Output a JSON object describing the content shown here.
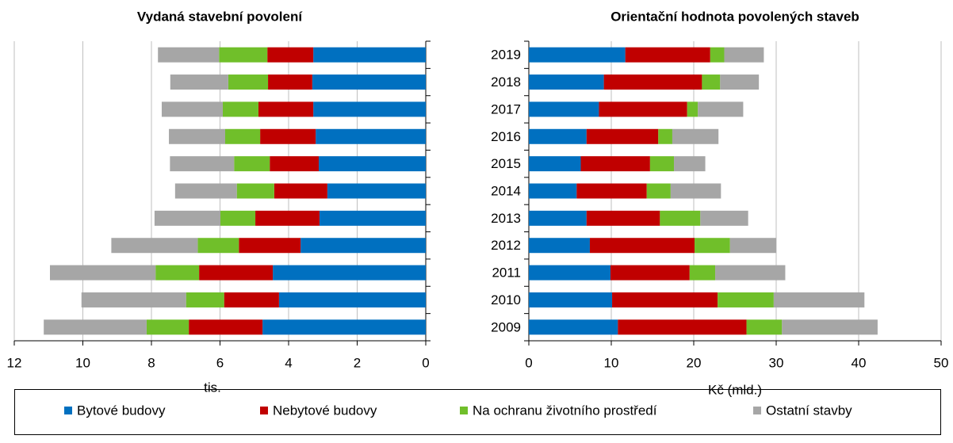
{
  "chart_data": [
    {
      "type": "stacked-barh",
      "title": "Vydaná stavební povolení",
      "xlabel": "tis.",
      "xlim": [
        12,
        0
      ],
      "xticks": [
        12,
        10,
        8,
        6,
        4,
        2,
        0
      ],
      "grid": true,
      "series": [
        {
          "name": "Bytové budovy",
          "color": "#0070c0",
          "values": [
            4.76,
            4.28,
            4.46,
            3.65,
            3.1,
            2.87,
            3.12,
            3.21,
            3.28,
            3.31,
            3.28
          ]
        },
        {
          "name": "Nebytové budovy",
          "color": "#c00000",
          "values": [
            2.15,
            1.6,
            2.15,
            1.8,
            1.87,
            1.55,
            1.43,
            1.62,
            1.6,
            1.29,
            1.34
          ]
        },
        {
          "name": "Na ochranu životního prostředí",
          "color": "#70bf2a",
          "values": [
            1.23,
            1.11,
            1.27,
            1.2,
            1.02,
            1.09,
            1.04,
            1.02,
            1.04,
            1.16,
            1.41
          ]
        },
        {
          "name": "Ostatní stavby",
          "color": "#a6a6a6",
          "values": [
            3.0,
            3.05,
            3.08,
            2.52,
            1.92,
            1.8,
            1.87,
            1.64,
            1.78,
            1.69,
            1.78
          ]
        }
      ]
    },
    {
      "type": "stacked-barh",
      "title": "Orientační hodnota povolených staveb",
      "xlabel": "Kč (mld.)",
      "categories": [
        "2009",
        "2010",
        "2011",
        "2012",
        "2013",
        "2014",
        "2015",
        "2016",
        "2017",
        "2018",
        "2019"
      ],
      "xlim": [
        0,
        50
      ],
      "xticks": [
        0,
        10,
        20,
        30,
        40,
        50
      ],
      "grid": true,
      "series": [
        {
          "name": "Bytové budovy",
          "color": "#0070c0",
          "values": [
            10.8,
            10.1,
            9.9,
            7.4,
            7.0,
            5.8,
            6.3,
            7.0,
            8.5,
            9.1,
            11.7
          ]
        },
        {
          "name": "Nebytové budovy",
          "color": "#c00000",
          "values": [
            15.6,
            12.8,
            9.6,
            12.7,
            8.9,
            8.5,
            8.4,
            8.7,
            10.7,
            11.9,
            10.3
          ]
        },
        {
          "name": "Na ochranu životního prostředí",
          "color": "#70bf2a",
          "values": [
            4.3,
            6.8,
            3.1,
            4.3,
            4.9,
            2.9,
            2.9,
            1.7,
            1.3,
            2.2,
            1.7
          ]
        },
        {
          "name": "Ostatní stavby",
          "color": "#a6a6a6",
          "values": [
            11.6,
            11.0,
            8.5,
            5.6,
            5.8,
            6.1,
            3.8,
            5.6,
            5.5,
            4.7,
            4.8
          ]
        }
      ]
    }
  ]
}
